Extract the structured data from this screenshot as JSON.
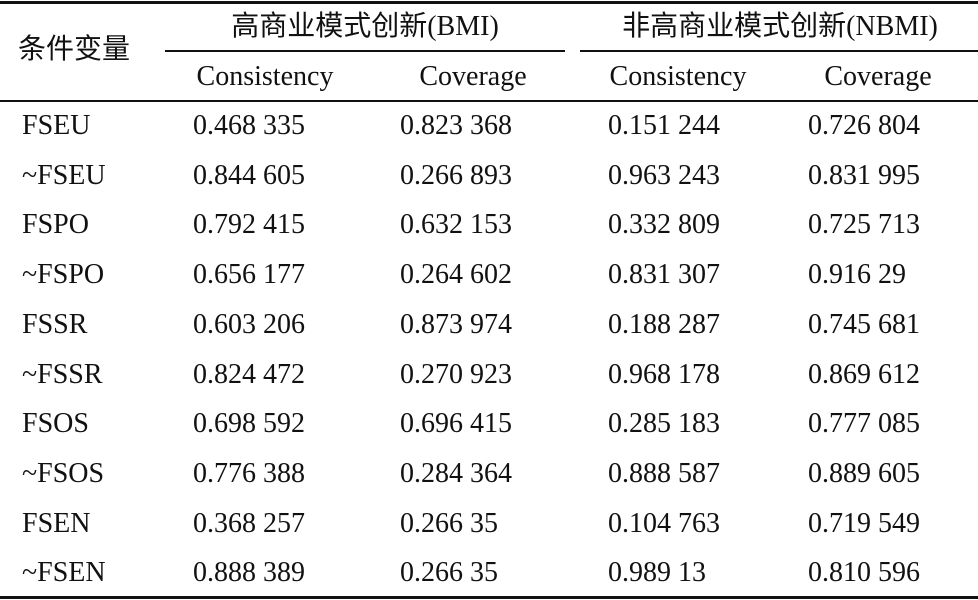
{
  "header": {
    "row_label": "条件变量",
    "groups": [
      "高商业模式创新(BMI)",
      "非高商业模式创新(NBMI)"
    ],
    "columns": [
      "Consistency",
      "Coverage",
      "Consistency",
      "Coverage"
    ]
  },
  "table": {
    "rows": [
      [
        "FSEU",
        "0.468 335",
        "0.823 368",
        "0.151 244",
        "0.726 804"
      ],
      [
        "~FSEU",
        "0.844 605",
        "0.266 893",
        "0.963 243",
        "0.831 995"
      ],
      [
        "FSPO",
        "0.792 415",
        "0.632 153",
        "0.332 809",
        "0.725 713"
      ],
      [
        "~FSPO",
        "0.656 177",
        "0.264 602",
        "0.831 307",
        "0.916 29"
      ],
      [
        "FSSR",
        "0.603 206",
        "0.873 974",
        "0.188 287",
        "0.745 681"
      ],
      [
        "~FSSR",
        "0.824 472",
        "0.270 923",
        "0.968 178",
        "0.869 612"
      ],
      [
        "FSOS",
        "0.698 592",
        "0.696 415",
        "0.285 183",
        "0.777 085"
      ],
      [
        "~FSOS",
        "0.776 388",
        "0.284 364",
        "0.888 587",
        "0.889 605"
      ],
      [
        "FSEN",
        "0.368 257",
        "0.266 35",
        "0.104 763",
        "0.719 549"
      ],
      [
        "~FSEN",
        "0.888 389",
        "0.266 35",
        "0.989 13",
        "0.810 596"
      ]
    ]
  }
}
